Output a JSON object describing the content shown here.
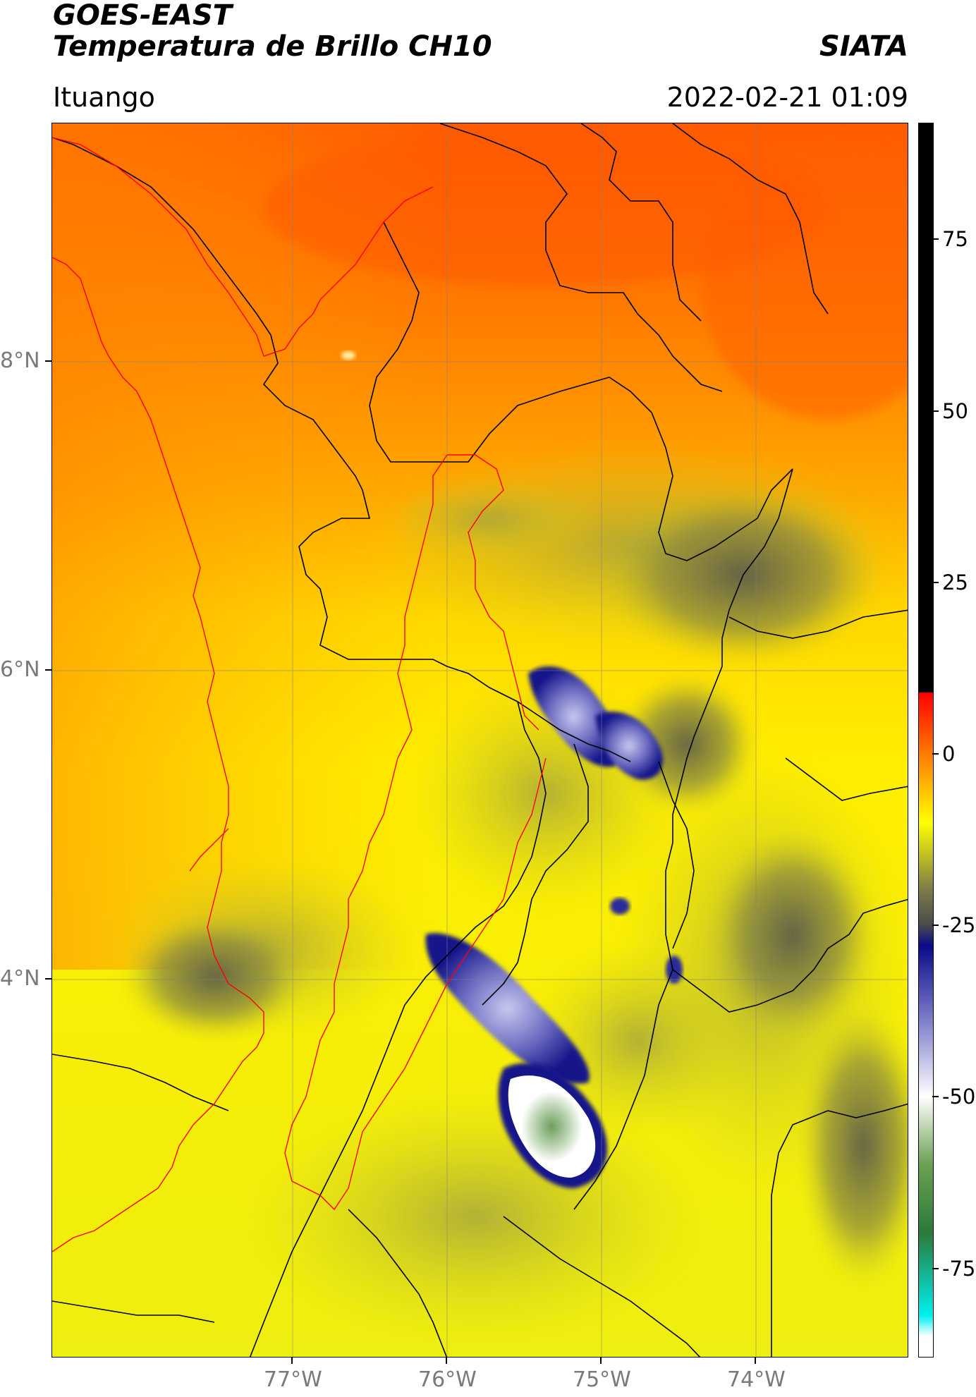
{
  "header": {
    "satellite": "GOES-EAST",
    "product": "Temperatura de Brillo CH10",
    "brand": "SIATA",
    "location": "Ituango",
    "datetime": "2022-02-21 01:09"
  },
  "map": {
    "lon_labels": [
      "77°W",
      "76°W",
      "75°W",
      "74°W"
    ],
    "lat_labels": [
      "8°N",
      "6°N",
      "4°N"
    ],
    "gridlines": true
  },
  "colorbar": {
    "tick_labels": [
      "75",
      "50",
      "25",
      "0",
      "-25",
      "-50",
      "-75"
    ],
    "ticks": [
      75,
      50,
      25,
      0,
      -25,
      -50,
      -75
    ],
    "range": [
      -88,
      92
    ],
    "stops": [
      {
        "v": 92,
        "c": "#000000"
      },
      {
        "v": 9,
        "c": "#000000"
      },
      {
        "v": 8.9,
        "c": "#ff0000"
      },
      {
        "v": 0,
        "c": "#ff7a00"
      },
      {
        "v": -10,
        "c": "#ffff00"
      },
      {
        "v": -20,
        "c": "#7a7a4a"
      },
      {
        "v": -25,
        "c": "#4a4a4a"
      },
      {
        "v": -28,
        "c": "#0a0a8a"
      },
      {
        "v": -40,
        "c": "#8a8ad0"
      },
      {
        "v": -50,
        "c": "#ffffff"
      },
      {
        "v": -60,
        "c": "#6aa050"
      },
      {
        "v": -70,
        "c": "#2a7a3a"
      },
      {
        "v": -82,
        "c": "#00f0f0"
      },
      {
        "v": -85,
        "c": "#ffffff"
      },
      {
        "v": -88,
        "c": "#ffffff"
      }
    ]
  },
  "colors": {
    "warm_top": "#ff6a00",
    "mid_orange": "#ff9a00",
    "yellow": "#ffff00",
    "olive": "#b8b830",
    "dark_olive": "#6e6e48",
    "deep_blue": "#1a1a8c",
    "light_blue": "#a8a8e0",
    "green_core": "#7aaa6a",
    "border_black": "#000000",
    "border_red": "#ff0000"
  }
}
